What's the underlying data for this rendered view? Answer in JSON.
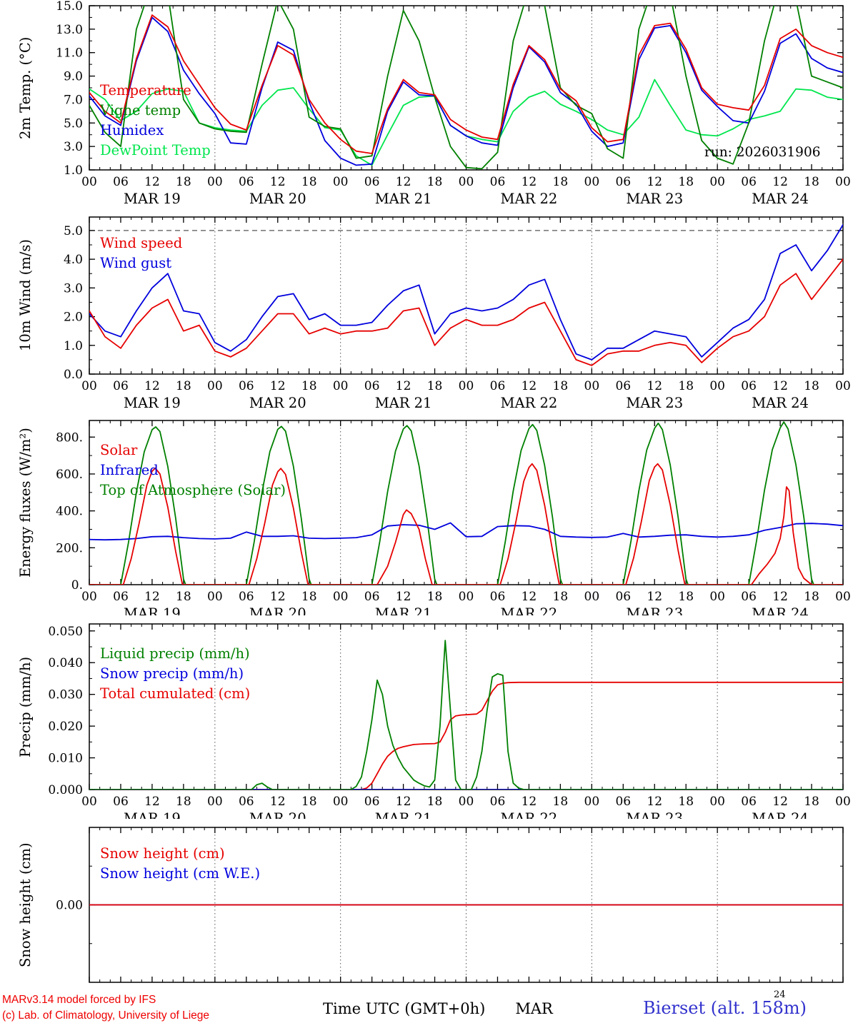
{
  "page": {
    "run_label": "run: 2026031906"
  },
  "x_axis": {
    "hour_labels": [
      "00",
      "06",
      "12",
      "18"
    ],
    "days": [
      "MAR 19",
      "MAR 20",
      "MAR 21",
      "MAR 22",
      "MAR 23",
      "MAR 24"
    ],
    "hours_start": 0,
    "hours_end": 144,
    "major_tick_hours": 6,
    "minor_tick_hours": 2,
    "day_gridline_hours": [
      24,
      48,
      72,
      96,
      120
    ]
  },
  "colors": {
    "red": "#e60000",
    "blue": "#0000dd",
    "dark_green": "#008000",
    "light_green": "#00e64d",
    "frame": "#000000",
    "grid": "#555555",
    "footer_red": "#ee0000",
    "footer_blue": "#3232cd"
  },
  "chart_data": [
    {
      "type": "line",
      "ylabel": "2m Temp. (°C)",
      "ylim": [
        1,
        15
      ],
      "yticks": [
        1,
        3,
        5,
        7,
        9,
        11,
        13,
        15
      ],
      "ytick_labels": [
        "1.0",
        "3.0",
        "5.0",
        "7.0",
        "9.0",
        "11.0",
        "13.0",
        "15.0"
      ],
      "y_minor_step": 1,
      "x_step": 3,
      "hlines": [],
      "series": [
        {
          "name": "temperature",
          "legend": "Temperature",
          "color": "#e60000",
          "values": [
            7.6,
            6.0,
            5.0,
            10.5,
            14.2,
            13.2,
            10.3,
            8.3,
            6.3,
            4.9,
            4.4,
            8.2,
            11.6,
            10.8,
            7.0,
            5.0,
            3.6,
            2.6,
            2.4,
            6.2,
            8.7,
            7.6,
            7.4,
            5.3,
            4.4,
            3.8,
            3.6,
            8.3,
            11.6,
            10.4,
            7.9,
            6.9,
            4.6,
            3.4,
            3.6,
            10.8,
            13.3,
            13.5,
            11.3,
            8.0,
            6.6,
            6.3,
            6.1,
            8.2,
            12.2,
            13.0,
            11.6,
            11.0,
            10.6
          ]
        },
        {
          "name": "vigne-temp",
          "legend": "Vigne temp",
          "color": "#008000",
          "values": [
            6.5,
            4.2,
            3.0,
            13.0,
            17.0,
            16.0,
            7.0,
            5.0,
            4.5,
            4.3,
            4.2,
            10.0,
            15.5,
            13.0,
            5.5,
            4.7,
            4.5,
            2.0,
            2.2,
            9.0,
            14.6,
            12.0,
            7.2,
            3.0,
            1.2,
            1.1,
            2.5,
            12.0,
            16.5,
            15.0,
            8.0,
            6.5,
            5.8,
            2.8,
            2.0,
            13.0,
            17.0,
            16.0,
            9.0,
            3.5,
            2.0,
            1.5,
            5.0,
            12.0,
            17.0,
            15.5,
            9.0,
            8.5,
            8.0
          ]
        },
        {
          "name": "humidex",
          "legend": "Humidex",
          "color": "#0000dd",
          "values": [
            7.3,
            5.6,
            4.8,
            10.3,
            14.0,
            12.8,
            9.5,
            7.5,
            5.8,
            3.3,
            3.2,
            8.0,
            11.9,
            11.2,
            6.8,
            3.5,
            2.0,
            1.4,
            1.5,
            6.0,
            8.5,
            7.4,
            7.3,
            4.8,
            3.9,
            3.3,
            3.1,
            8.0,
            11.5,
            10.2,
            7.6,
            6.6,
            4.3,
            3.0,
            3.3,
            10.4,
            13.1,
            13.3,
            11.0,
            7.8,
            6.4,
            5.2,
            5.0,
            7.7,
            11.8,
            12.6,
            10.5,
            9.7,
            9.3
          ]
        },
        {
          "name": "dewpoint-temp",
          "legend": "DewPoint Temp",
          "color": "#00e64d",
          "values": [
            7.9,
            7.0,
            5.2,
            6.0,
            7.5,
            7.9,
            7.7,
            5.0,
            4.6,
            4.4,
            4.3,
            6.5,
            7.8,
            8.0,
            6.2,
            4.6,
            4.4,
            2.2,
            1.4,
            4.0,
            6.5,
            7.2,
            7.3,
            4.8,
            3.9,
            3.6,
            3.4,
            6.0,
            7.2,
            7.7,
            6.6,
            6.0,
            5.3,
            4.4,
            4.0,
            5.5,
            8.7,
            6.5,
            4.4,
            4.0,
            3.9,
            4.5,
            5.3,
            5.6,
            6.0,
            7.9,
            7.8,
            7.2,
            7.0
          ]
        }
      ]
    },
    {
      "type": "line",
      "ylabel": "10m Wind (m/s)",
      "ylim": [
        0,
        5.47
      ],
      "yticks": [
        0,
        1,
        2,
        3,
        4,
        5
      ],
      "ytick_labels": [
        "0.0",
        "1.0",
        "2.0",
        "3.0",
        "4.0",
        "5.0"
      ],
      "y_minor_step": 0.5,
      "x_step": 3,
      "hlines": [
        5.0
      ],
      "series": [
        {
          "name": "wind-speed",
          "legend": "Wind speed",
          "color": "#e60000",
          "values": [
            2.2,
            1.3,
            0.9,
            1.7,
            2.3,
            2.6,
            1.5,
            1.7,
            0.8,
            0.6,
            0.9,
            1.5,
            2.1,
            2.1,
            1.4,
            1.6,
            1.4,
            1.5,
            1.5,
            1.6,
            2.2,
            2.3,
            1.0,
            1.6,
            1.9,
            1.7,
            1.7,
            1.9,
            2.3,
            2.5,
            1.5,
            0.5,
            0.3,
            0.7,
            0.8,
            0.8,
            1.0,
            1.1,
            1.0,
            0.4,
            0.9,
            1.3,
            1.5,
            2.0,
            3.1,
            3.5,
            2.6,
            3.3,
            4.0
          ]
        },
        {
          "name": "wind-gust",
          "legend": "Wind gust",
          "color": "#0000dd",
          "values": [
            2.1,
            1.5,
            1.3,
            2.2,
            3.0,
            3.5,
            2.2,
            2.1,
            1.1,
            0.8,
            1.2,
            2.0,
            2.7,
            2.8,
            1.9,
            2.1,
            1.7,
            1.7,
            1.8,
            2.4,
            2.9,
            3.1,
            1.4,
            2.1,
            2.3,
            2.2,
            2.3,
            2.6,
            3.1,
            3.3,
            1.9,
            0.7,
            0.5,
            0.9,
            0.9,
            1.2,
            1.5,
            1.4,
            1.3,
            0.6,
            1.1,
            1.6,
            1.9,
            2.6,
            4.2,
            4.5,
            3.6,
            4.3,
            5.2
          ]
        }
      ]
    },
    {
      "type": "line",
      "ylabel": "Energy fluxes (W/m²)",
      "ylim": [
        0,
        890
      ],
      "yticks": [
        0,
        200,
        400,
        600,
        800
      ],
      "ytick_labels": [
        "0.",
        "200.",
        "400.",
        "600.",
        "800."
      ],
      "y_minor_step": 100,
      "x_step": 3,
      "hlines": [],
      "series": [
        {
          "name": "solar",
          "legend": "Solar",
          "color": "#e60000",
          "x": [
            0,
            6.5,
            8,
            9.5,
            11,
            12,
            12.6,
            13.5,
            15,
            16.5,
            17.8,
            30.5,
            32,
            33.5,
            35,
            36,
            36.6,
            37.5,
            39,
            40.5,
            41.8,
            55,
            57,
            58.5,
            60,
            60.6,
            61.5,
            63,
            64.2,
            65.5,
            78.5,
            80,
            81.5,
            83,
            84,
            84.6,
            85.5,
            87,
            88.5,
            89.8,
            102.5,
            104,
            105.5,
            107,
            108,
            108.6,
            109.5,
            111,
            112.5,
            113.8,
            126.5,
            128,
            129.5,
            131,
            132,
            132.7,
            133.2,
            133.7,
            134.5,
            135.5,
            136.5,
            138,
            144
          ],
          "y": [
            0,
            0,
            140,
            330,
            540,
            615,
            632,
            600,
            420,
            180,
            0,
            0,
            140,
            330,
            540,
            612,
            630,
            598,
            415,
            178,
            0,
            0,
            100,
            230,
            380,
            405,
            385,
            300,
            140,
            0,
            0,
            140,
            340,
            560,
            635,
            655,
            620,
            430,
            185,
            0,
            0,
            145,
            345,
            565,
            638,
            655,
            622,
            432,
            186,
            0,
            0,
            60,
            110,
            170,
            250,
            370,
            530,
            510,
            280,
            90,
            35,
            0,
            0
          ]
        },
        {
          "name": "infrared",
          "legend": "Infrared",
          "color": "#0000dd",
          "values": [
            245,
            243,
            245,
            250,
            260,
            262,
            255,
            250,
            248,
            252,
            285,
            262,
            262,
            265,
            252,
            250,
            252,
            255,
            270,
            318,
            325,
            322,
            300,
            335,
            260,
            262,
            315,
            320,
            318,
            300,
            262,
            258,
            256,
            258,
            278,
            258,
            262,
            268,
            270,
            262,
            258,
            262,
            270,
            295,
            310,
            330,
            332,
            328,
            320
          ]
        },
        {
          "name": "toa-solar",
          "legend": "Top of Atmosphere (Solar)",
          "color": "#008000",
          "x": [
            0,
            6,
            7.5,
            9,
            10.5,
            12,
            12.7,
            13.5,
            15,
            16.5,
            18,
            18.4,
            30,
            31.5,
            33,
            34.5,
            36,
            36.7,
            37.5,
            39,
            40.5,
            42,
            42.4,
            54,
            55.5,
            57,
            58.5,
            60,
            60.7,
            61.5,
            63,
            64.5,
            66,
            66.4,
            78,
            79.5,
            81,
            82.5,
            84,
            84.7,
            85.5,
            87,
            88.5,
            90,
            90.4,
            102,
            103.5,
            105,
            106.5,
            108,
            108.7,
            109.5,
            111,
            112.5,
            114,
            114.4,
            126,
            127.5,
            129,
            130.5,
            132,
            132.7,
            133.5,
            135,
            136.5,
            138,
            138.4,
            144
          ],
          "y": [
            0,
            0,
            230,
            500,
            720,
            840,
            855,
            830,
            640,
            360,
            30,
            0,
            0,
            232,
            502,
            722,
            842,
            858,
            832,
            642,
            360,
            30,
            0,
            0,
            234,
            505,
            724,
            844,
            862,
            834,
            644,
            362,
            30,
            0,
            0,
            236,
            508,
            727,
            846,
            868,
            836,
            646,
            364,
            30,
            0,
            0,
            238,
            510,
            730,
            848,
            875,
            840,
            648,
            366,
            30,
            0,
            0,
            240,
            512,
            732,
            850,
            882,
            844,
            650,
            368,
            30,
            0,
            0
          ]
        }
      ]
    },
    {
      "type": "line",
      "ylabel": "Precip (mm/h)",
      "ylim": [
        0,
        0.0522
      ],
      "yticks": [
        0,
        0.01,
        0.02,
        0.03,
        0.04,
        0.05
      ],
      "ytick_labels": [
        "0.000",
        "0.010",
        "0.020",
        "0.030",
        "0.040",
        "0.050"
      ],
      "y_minor_step": 0.005,
      "x_step": 3,
      "hlines": [],
      "series": [
        {
          "name": "liquid-precip",
          "legend": "Liquid precip (mm/h)",
          "color": "#008000",
          "x": [
            0,
            31,
            32,
            33,
            34,
            35,
            50,
            51,
            52,
            53,
            54,
            55,
            56,
            57,
            58,
            59,
            60,
            61,
            62,
            63,
            64,
            65,
            66,
            67,
            68,
            69,
            70,
            71,
            73,
            74,
            75,
            76,
            77,
            78,
            79,
            80,
            81,
            82,
            83,
            144
          ],
          "y": [
            0,
            0,
            0.0015,
            0.002,
            0.0008,
            0,
            0,
            0.001,
            0.004,
            0.012,
            0.022,
            0.0345,
            0.03,
            0.02,
            0.014,
            0.01,
            0.007,
            0.005,
            0.003,
            0.002,
            0.0012,
            0.0008,
            0.003,
            0.02,
            0.047,
            0.025,
            0.003,
            0,
            0,
            0.004,
            0.012,
            0.025,
            0.0355,
            0.0365,
            0.036,
            0.012,
            0.002,
            0.0005,
            0,
            0
          ]
        },
        {
          "name": "snow-precip",
          "legend": "Snow precip (mm/h)",
          "color": "#0000dd",
          "x": [
            0,
            144
          ],
          "y": [
            0,
            0
          ]
        },
        {
          "name": "total-cumulated",
          "legend": "Total cumulated (cm)",
          "color": "#e60000",
          "x": [
            0,
            52,
            53,
            54,
            55,
            56,
            57,
            58,
            59,
            60,
            62,
            64,
            66,
            67,
            68,
            69,
            70,
            71,
            74,
            75,
            76,
            77,
            78,
            79,
            80,
            82,
            144
          ],
          "y": [
            0,
            0,
            0.0005,
            0.002,
            0.005,
            0.008,
            0.0105,
            0.012,
            0.013,
            0.0135,
            0.0142,
            0.0144,
            0.0145,
            0.015,
            0.018,
            0.022,
            0.0232,
            0.0235,
            0.0238,
            0.025,
            0.028,
            0.031,
            0.033,
            0.0335,
            0.0337,
            0.0338,
            0.0338
          ]
        }
      ]
    },
    {
      "type": "line",
      "ylabel": "Snow height (cm)",
      "ylim": [
        -1,
        1
      ],
      "yticks": [
        0
      ],
      "ytick_labels": [
        "0.00"
      ],
      "y_minor_step": 0.5,
      "x_step": 3,
      "hlines": [],
      "series": [
        {
          "name": "snow-height",
          "legend": "Snow height (cm)",
          "color": "#e60000",
          "x": [
            0,
            144
          ],
          "y": [
            0,
            0
          ]
        },
        {
          "name": "snow-height-we",
          "legend": "Snow height (cm W.E.)",
          "color": "#0000dd",
          "x": [
            0,
            144
          ],
          "y": [
            0,
            0
          ]
        }
      ]
    }
  ],
  "footer": {
    "credit_line1": "MARv3.14 model forced by IFS",
    "credit_line2": "(c) Lab. of Climatology, University of Liege",
    "time_axis_label": "Time UTC (GMT+0h)",
    "month_label": "MAR",
    "page_number": "24",
    "station_label": "Bierset (alt. 158m)"
  }
}
